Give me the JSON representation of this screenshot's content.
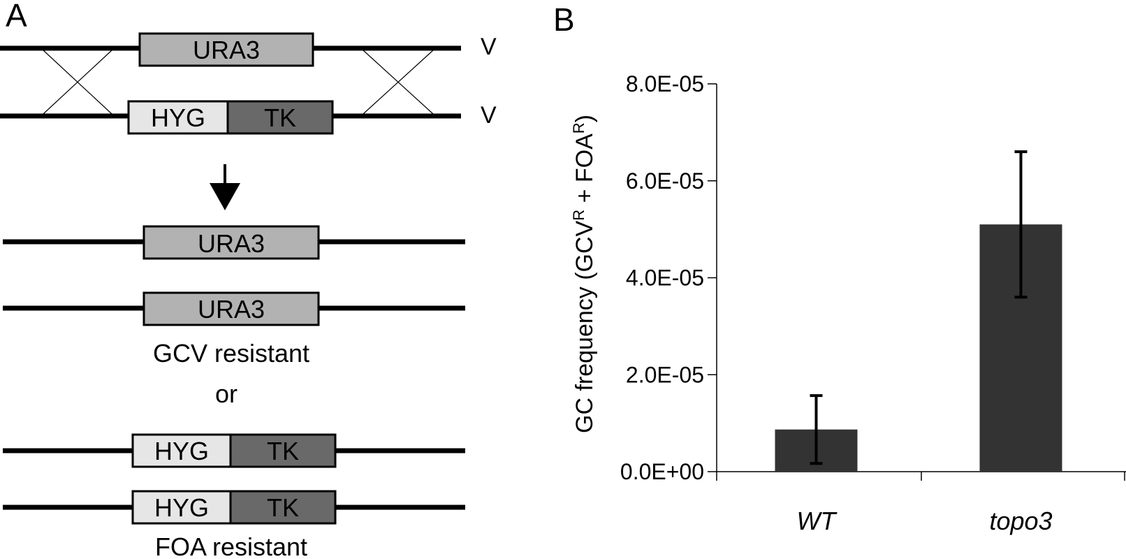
{
  "panels": {
    "a_letter": "A",
    "b_letter": "B"
  },
  "panel_a": {
    "top_pair": {
      "upper": {
        "box": "URA3",
        "end_label": "V"
      },
      "lower": {
        "box_left": "HYG",
        "box_right": "TK",
        "end_label": "V"
      }
    },
    "results": [
      {
        "box": "URA3"
      },
      {
        "box": "URA3"
      }
    ],
    "caption_gcv": "GCV resistant",
    "caption_or": "or",
    "results2": [
      {
        "box_left": "HYG",
        "box_right": "TK"
      },
      {
        "box_left": "HYG",
        "box_right": "TK"
      }
    ],
    "caption_foa": "FOA resistant",
    "colors": {
      "ura3": "#b2b2b2",
      "hyg": "#e6e6e6",
      "tk": "#696969"
    }
  },
  "chart_data": {
    "type": "bar",
    "categories": [
      "WT",
      "topo3"
    ],
    "values": [
      8.7e-06,
      5.1e-05
    ],
    "errors": [
      7e-06,
      1.5e-05
    ],
    "ylim": [
      0,
      8e-05
    ],
    "yticks": [
      "0.0E+00",
      "2.0E-05",
      "4.0E-05",
      "6.0E-05",
      "8.0E-05"
    ],
    "ytick_values": [
      0,
      2e-05,
      4e-05,
      6e-05,
      8e-05
    ],
    "ylabel": {
      "pre": "GC frequency (GCV",
      "sup1": "R",
      "mid": " + FOA",
      "sup2": "R",
      "post": ")"
    },
    "bar_color": "#333333",
    "grid": false
  }
}
